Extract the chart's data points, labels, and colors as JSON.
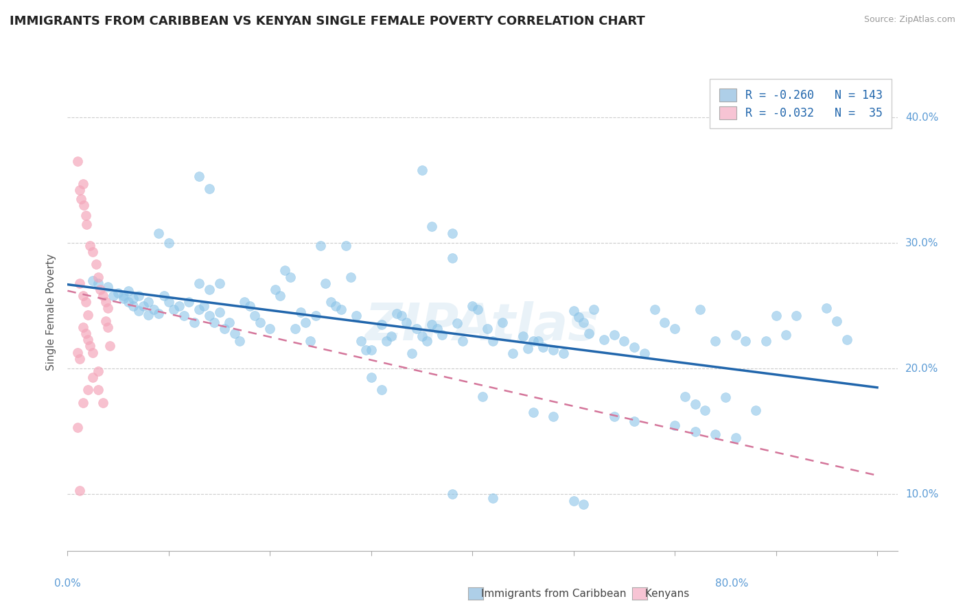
{
  "title": "IMMIGRANTS FROM CARIBBEAN VS KENYAN SINGLE FEMALE POVERTY CORRELATION CHART",
  "source": "Source: ZipAtlas.com",
  "ylabel": "Single Female Poverty",
  "ytick_values": [
    0.1,
    0.2,
    0.3,
    0.4
  ],
  "ytick_labels": [
    "10.0%",
    "20.0%",
    "30.0%",
    "40.0%"
  ],
  "xtick_values": [
    0.0,
    0.1,
    0.2,
    0.3,
    0.4,
    0.5,
    0.6,
    0.7,
    0.8
  ],
  "xtick_labels": [
    "",
    "",
    "",
    "",
    "",
    "",
    "",
    "",
    ""
  ],
  "xlim": [
    0.0,
    0.82
  ],
  "ylim": [
    0.055,
    0.435
  ],
  "legend_label1": "Immigrants from Caribbean",
  "legend_label2": "Kenyans",
  "blue_color": "#8bc4e8",
  "pink_color": "#f4a7bb",
  "trend_blue": "#2166ac",
  "trend_pink": "#d4759a",
  "background": "#ffffff",
  "watermark": "ZipAtlas",
  "blue_scatter": [
    [
      0.025,
      0.27
    ],
    [
      0.03,
      0.268
    ],
    [
      0.04,
      0.265
    ],
    [
      0.05,
      0.26
    ],
    [
      0.055,
      0.258
    ],
    [
      0.06,
      0.262
    ],
    [
      0.065,
      0.256
    ],
    [
      0.07,
      0.258
    ],
    [
      0.075,
      0.25
    ],
    [
      0.08,
      0.253
    ],
    [
      0.085,
      0.247
    ],
    [
      0.09,
      0.244
    ],
    [
      0.095,
      0.258
    ],
    [
      0.1,
      0.253
    ],
    [
      0.105,
      0.247
    ],
    [
      0.11,
      0.25
    ],
    [
      0.115,
      0.242
    ],
    [
      0.12,
      0.253
    ],
    [
      0.125,
      0.237
    ],
    [
      0.13,
      0.247
    ],
    [
      0.135,
      0.25
    ],
    [
      0.14,
      0.242
    ],
    [
      0.145,
      0.237
    ],
    [
      0.15,
      0.245
    ],
    [
      0.155,
      0.232
    ],
    [
      0.16,
      0.237
    ],
    [
      0.165,
      0.228
    ],
    [
      0.17,
      0.222
    ],
    [
      0.175,
      0.253
    ],
    [
      0.18,
      0.25
    ],
    [
      0.185,
      0.242
    ],
    [
      0.19,
      0.237
    ],
    [
      0.2,
      0.232
    ],
    [
      0.205,
      0.263
    ],
    [
      0.21,
      0.258
    ],
    [
      0.215,
      0.278
    ],
    [
      0.22,
      0.273
    ],
    [
      0.225,
      0.232
    ],
    [
      0.23,
      0.245
    ],
    [
      0.235,
      0.237
    ],
    [
      0.24,
      0.222
    ],
    [
      0.245,
      0.242
    ],
    [
      0.25,
      0.298
    ],
    [
      0.255,
      0.268
    ],
    [
      0.26,
      0.253
    ],
    [
      0.265,
      0.25
    ],
    [
      0.27,
      0.247
    ],
    [
      0.275,
      0.298
    ],
    [
      0.28,
      0.273
    ],
    [
      0.285,
      0.242
    ],
    [
      0.29,
      0.222
    ],
    [
      0.295,
      0.215
    ],
    [
      0.3,
      0.215
    ],
    [
      0.31,
      0.235
    ],
    [
      0.315,
      0.222
    ],
    [
      0.32,
      0.226
    ],
    [
      0.325,
      0.244
    ],
    [
      0.33,
      0.242
    ],
    [
      0.335,
      0.237
    ],
    [
      0.34,
      0.212
    ],
    [
      0.345,
      0.232
    ],
    [
      0.35,
      0.226
    ],
    [
      0.355,
      0.222
    ],
    [
      0.36,
      0.235
    ],
    [
      0.365,
      0.232
    ],
    [
      0.37,
      0.227
    ],
    [
      0.38,
      0.288
    ],
    [
      0.385,
      0.236
    ],
    [
      0.39,
      0.222
    ],
    [
      0.4,
      0.25
    ],
    [
      0.405,
      0.247
    ],
    [
      0.41,
      0.178
    ],
    [
      0.415,
      0.232
    ],
    [
      0.42,
      0.222
    ],
    [
      0.43,
      0.237
    ],
    [
      0.44,
      0.212
    ],
    [
      0.45,
      0.226
    ],
    [
      0.455,
      0.216
    ],
    [
      0.46,
      0.222
    ],
    [
      0.465,
      0.222
    ],
    [
      0.47,
      0.217
    ],
    [
      0.48,
      0.215
    ],
    [
      0.49,
      0.212
    ],
    [
      0.5,
      0.246
    ],
    [
      0.505,
      0.241
    ],
    [
      0.51,
      0.237
    ],
    [
      0.515,
      0.228
    ],
    [
      0.52,
      0.247
    ],
    [
      0.53,
      0.223
    ],
    [
      0.54,
      0.227
    ],
    [
      0.55,
      0.222
    ],
    [
      0.56,
      0.217
    ],
    [
      0.57,
      0.212
    ],
    [
      0.58,
      0.247
    ],
    [
      0.59,
      0.237
    ],
    [
      0.6,
      0.232
    ],
    [
      0.61,
      0.178
    ],
    [
      0.62,
      0.172
    ],
    [
      0.625,
      0.247
    ],
    [
      0.63,
      0.167
    ],
    [
      0.64,
      0.222
    ],
    [
      0.65,
      0.177
    ],
    [
      0.66,
      0.227
    ],
    [
      0.67,
      0.222
    ],
    [
      0.68,
      0.167
    ],
    [
      0.69,
      0.222
    ],
    [
      0.7,
      0.242
    ],
    [
      0.71,
      0.227
    ],
    [
      0.72,
      0.242
    ],
    [
      0.13,
      0.353
    ],
    [
      0.14,
      0.343
    ],
    [
      0.09,
      0.308
    ],
    [
      0.1,
      0.3
    ],
    [
      0.35,
      0.358
    ],
    [
      0.36,
      0.313
    ],
    [
      0.38,
      0.308
    ],
    [
      0.3,
      0.193
    ],
    [
      0.31,
      0.183
    ],
    [
      0.13,
      0.268
    ],
    [
      0.14,
      0.263
    ],
    [
      0.15,
      0.268
    ],
    [
      0.06,
      0.253
    ],
    [
      0.07,
      0.246
    ],
    [
      0.08,
      0.243
    ],
    [
      0.045,
      0.258
    ],
    [
      0.055,
      0.256
    ],
    [
      0.065,
      0.25
    ],
    [
      0.75,
      0.248
    ],
    [
      0.76,
      0.238
    ],
    [
      0.77,
      0.223
    ],
    [
      0.5,
      0.095
    ],
    [
      0.51,
      0.092
    ],
    [
      0.38,
      0.1
    ],
    [
      0.42,
      0.097
    ],
    [
      0.46,
      0.165
    ],
    [
      0.48,
      0.162
    ],
    [
      0.54,
      0.162
    ],
    [
      0.56,
      0.158
    ],
    [
      0.6,
      0.155
    ],
    [
      0.62,
      0.15
    ],
    [
      0.64,
      0.148
    ],
    [
      0.66,
      0.145
    ]
  ],
  "pink_scatter": [
    [
      0.01,
      0.365
    ],
    [
      0.012,
      0.342
    ],
    [
      0.015,
      0.347
    ],
    [
      0.018,
      0.322
    ],
    [
      0.013,
      0.335
    ],
    [
      0.016,
      0.33
    ],
    [
      0.019,
      0.315
    ],
    [
      0.022,
      0.298
    ],
    [
      0.025,
      0.293
    ],
    [
      0.028,
      0.283
    ],
    [
      0.03,
      0.273
    ],
    [
      0.032,
      0.263
    ],
    [
      0.035,
      0.258
    ],
    [
      0.038,
      0.253
    ],
    [
      0.04,
      0.248
    ],
    [
      0.012,
      0.268
    ],
    [
      0.015,
      0.258
    ],
    [
      0.018,
      0.253
    ],
    [
      0.02,
      0.243
    ],
    [
      0.015,
      0.233
    ],
    [
      0.018,
      0.228
    ],
    [
      0.02,
      0.223
    ],
    [
      0.022,
      0.218
    ],
    [
      0.025,
      0.213
    ],
    [
      0.03,
      0.183
    ],
    [
      0.035,
      0.173
    ],
    [
      0.01,
      0.213
    ],
    [
      0.012,
      0.208
    ],
    [
      0.015,
      0.173
    ],
    [
      0.01,
      0.153
    ],
    [
      0.012,
      0.103
    ],
    [
      0.02,
      0.183
    ],
    [
      0.025,
      0.193
    ],
    [
      0.03,
      0.198
    ],
    [
      0.038,
      0.238
    ],
    [
      0.04,
      0.233
    ],
    [
      0.042,
      0.218
    ]
  ],
  "blue_trend_x": [
    0.0,
    0.8
  ],
  "blue_trend_y": [
    0.267,
    0.185
  ],
  "pink_trend_x": [
    0.0,
    0.8
  ],
  "pink_trend_y": [
    0.262,
    0.115
  ]
}
